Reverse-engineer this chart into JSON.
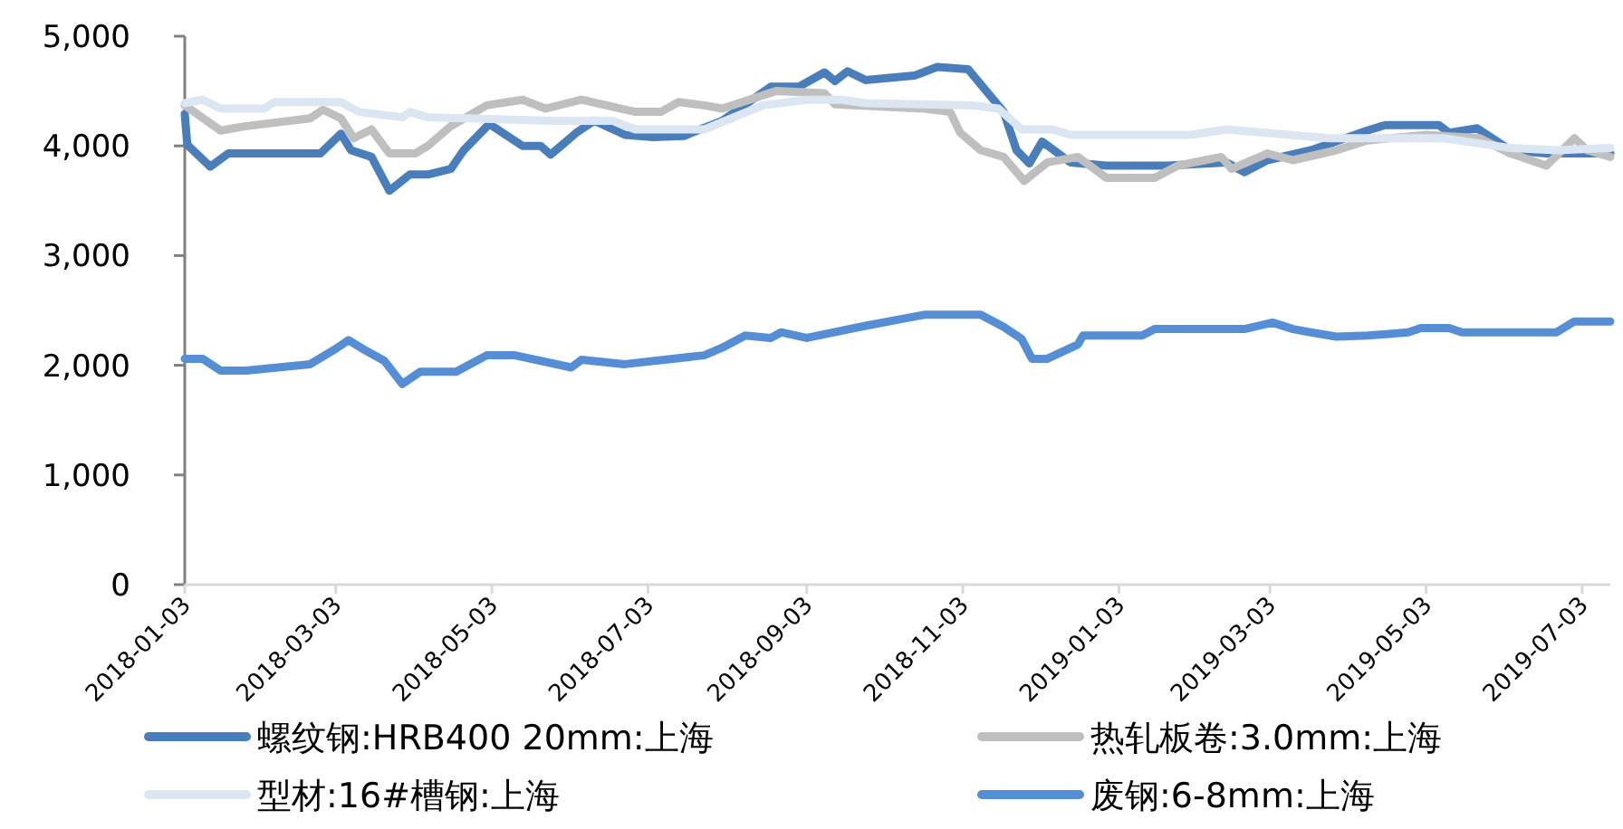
{
  "chart_data": {
    "type": "line",
    "ylim": [
      0,
      5000
    ],
    "yticks": [
      {
        "value": 0,
        "label": "0"
      },
      {
        "value": 1000,
        "label": "1,000"
      },
      {
        "value": 2000,
        "label": "2,000"
      },
      {
        "value": 3000,
        "label": "3,000"
      },
      {
        "value": 4000,
        "label": "4,000"
      },
      {
        "value": 5000,
        "label": "5,000"
      }
    ],
    "xlim": [
      "2018-01-03",
      "2019-07-14"
    ],
    "xticks": [
      "2018-01-03",
      "2018-03-03",
      "2018-05-03",
      "2018-07-03",
      "2018-09-03",
      "2018-11-03",
      "2019-01-03",
      "2019-03-03",
      "2019-05-03",
      "2019-07-03"
    ],
    "grid": false,
    "legend": "bottom",
    "line_style": "solid",
    "series": [
      {
        "name": "螺纹钢:HRB400 20mm:上海",
        "color": "#4a7ebb",
        "x": [
          "2018-01-03",
          "2018-01-04",
          "2018-01-13",
          "2018-01-20",
          "2018-02-25",
          "2018-03-05",
          "2018-03-09",
          "2018-03-17",
          "2018-03-24",
          "2018-04-01",
          "2018-04-08",
          "2018-04-17",
          "2018-04-22",
          "2018-05-02",
          "2018-05-15",
          "2018-05-22",
          "2018-05-26",
          "2018-05-30",
          "2018-06-05",
          "2018-06-12",
          "2018-06-24",
          "2018-07-05",
          "2018-07-17",
          "2018-08-01",
          "2018-08-20",
          "2018-08-31",
          "2018-09-10",
          "2018-09-14",
          "2018-09-19",
          "2018-09-26",
          "2018-10-15",
          "2018-10-24",
          "2018-11-05",
          "2018-11-19",
          "2018-11-24",
          "2018-11-29",
          "2018-12-04",
          "2018-12-15",
          "2018-12-29",
          "2019-01-22",
          "2019-02-14",
          "2019-02-21",
          "2019-03-02",
          "2019-03-19",
          "2019-04-10",
          "2019-04-17",
          "2019-05-08",
          "2019-05-12",
          "2019-05-23",
          "2019-06-05",
          "2019-06-19",
          "2019-07-14"
        ],
        "values": [
          4290,
          4010,
          3810,
          3930,
          3930,
          4110,
          3960,
          3900,
          3590,
          3740,
          3740,
          3790,
          3960,
          4200,
          4000,
          4000,
          3920,
          4000,
          4120,
          4230,
          4100,
          4080,
          4090,
          4230,
          4540,
          4540,
          4670,
          4590,
          4680,
          4600,
          4640,
          4720,
          4700,
          4310,
          3960,
          3840,
          4040,
          3850,
          3820,
          3820,
          3850,
          3760,
          3870,
          3960,
          4140,
          4190,
          4190,
          4120,
          4160,
          3960,
          3930,
          3930
        ]
      },
      {
        "name": "热轧板卷:3.0mm:上海",
        "color": "#bfbfbf",
        "x": [
          "2018-01-03",
          "2018-01-17",
          "2018-01-27",
          "2018-02-21",
          "2018-02-26",
          "2018-03-05",
          "2018-03-10",
          "2018-03-17",
          "2018-03-24",
          "2018-04-03",
          "2018-04-08",
          "2018-04-17",
          "2018-05-01",
          "2018-05-15",
          "2018-05-24",
          "2018-06-07",
          "2018-06-28",
          "2018-07-08",
          "2018-07-15",
          "2018-07-25",
          "2018-08-01",
          "2018-08-22",
          "2018-09-10",
          "2018-09-14",
          "2018-10-19",
          "2018-10-29",
          "2018-11-02",
          "2018-11-10",
          "2018-11-19",
          "2018-11-27",
          "2018-12-06",
          "2018-12-18",
          "2018-12-29",
          "2019-01-17",
          "2019-01-26",
          "2019-02-12",
          "2019-02-16",
          "2019-03-02",
          "2019-03-12",
          "2019-03-29",
          "2019-04-10",
          "2019-05-03",
          "2019-05-24",
          "2019-06-05",
          "2019-06-19",
          "2019-06-30",
          "2019-07-05",
          "2019-07-14"
        ],
        "values": [
          4370,
          4140,
          4180,
          4250,
          4330,
          4250,
          4070,
          4150,
          3930,
          3930,
          4000,
          4180,
          4370,
          4420,
          4340,
          4420,
          4310,
          4310,
          4400,
          4370,
          4340,
          4500,
          4480,
          4380,
          4340,
          4310,
          4120,
          3960,
          3900,
          3680,
          3850,
          3900,
          3710,
          3710,
          3820,
          3900,
          3790,
          3930,
          3870,
          3960,
          4050,
          4100,
          4070,
          3930,
          3820,
          4070,
          3960,
          3900
        ]
      },
      {
        "name": "型材:16#槽钢:上海",
        "color": "#dce6f2",
        "x": [
          "2018-01-03",
          "2018-01-10",
          "2018-01-17",
          "2018-02-03",
          "2018-02-07",
          "2018-03-05",
          "2018-03-12",
          "2018-03-29",
          "2018-04-01",
          "2018-04-08",
          "2018-05-27",
          "2018-06-19",
          "2018-06-28",
          "2018-07-25",
          "2018-08-17",
          "2018-09-03",
          "2018-09-17",
          "2018-09-26",
          "2018-11-07",
          "2018-11-17",
          "2018-11-26",
          "2018-12-08",
          "2018-12-15",
          "2019-01-31",
          "2019-02-14",
          "2019-03-26",
          "2019-05-10",
          "2019-06-05",
          "2019-06-23",
          "2019-07-14"
        ],
        "values": [
          4390,
          4420,
          4340,
          4340,
          4400,
          4400,
          4310,
          4260,
          4310,
          4260,
          4230,
          4230,
          4150,
          4150,
          4370,
          4420,
          4420,
          4390,
          4370,
          4340,
          4150,
          4150,
          4100,
          4100,
          4150,
          4070,
          4070,
          3980,
          3960,
          3980
        ]
      },
      {
        "name": "废钢:6-8mm:上海",
        "color": "#558ed5",
        "x": [
          "2018-01-03",
          "2018-01-10",
          "2018-01-17",
          "2018-01-27",
          "2018-02-21",
          "2018-03-03",
          "2018-03-08",
          "2018-03-15",
          "2018-03-22",
          "2018-03-29",
          "2018-04-05",
          "2018-04-19",
          "2018-05-01",
          "2018-05-12",
          "2018-06-03",
          "2018-06-07",
          "2018-06-24",
          "2018-07-25",
          "2018-08-01",
          "2018-08-10",
          "2018-08-20",
          "2018-08-24",
          "2018-09-03",
          "2018-09-26",
          "2018-10-19",
          "2018-11-10",
          "2018-11-19",
          "2018-11-26",
          "2018-11-30",
          "2018-12-06",
          "2018-12-18",
          "2018-12-20",
          "2019-01-12",
          "2019-01-17",
          "2019-02-21",
          "2019-03-04",
          "2019-03-12",
          "2019-03-19",
          "2019-03-29",
          "2019-04-10",
          "2019-04-26",
          "2019-05-01",
          "2019-05-12",
          "2019-05-17",
          "2019-06-23",
          "2019-06-30",
          "2019-07-14"
        ],
        "values": [
          2060,
          2060,
          1950,
          1950,
          2010,
          2150,
          2230,
          2130,
          2040,
          1830,
          1940,
          1940,
          2090,
          2090,
          1980,
          2050,
          2010,
          2090,
          2160,
          2270,
          2250,
          2300,
          2250,
          2360,
          2460,
          2460,
          2350,
          2240,
          2060,
          2060,
          2190,
          2270,
          2270,
          2330,
          2330,
          2390,
          2330,
          2300,
          2260,
          2270,
          2300,
          2340,
          2340,
          2300,
          2300,
          2400,
          2400
        ]
      }
    ]
  }
}
